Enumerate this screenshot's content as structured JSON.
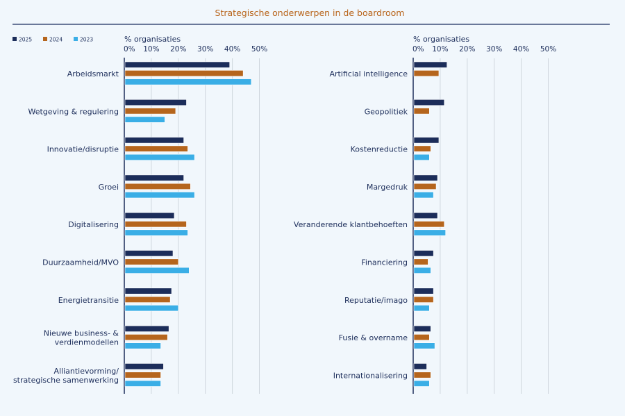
{
  "title": "Strategische onderwerpen in de boardroom",
  "colors": {
    "2025": "#1c2d5a",
    "2024": "#b5651d",
    "2023": "#3aaee6",
    "title": "#b8641a",
    "grid": "#cfd6dd"
  },
  "legend": [
    {
      "name": "2025",
      "color": "#1c2d5a"
    },
    {
      "name": "2024",
      "color": "#b5651d"
    },
    {
      "name": "2023",
      "color": "#3aaee6"
    }
  ],
  "chart_data": [
    {
      "type": "bar",
      "orientation": "horizontal",
      "xlabel": "% organisaties",
      "xlim": [
        0,
        50
      ],
      "xticks": [
        "0%",
        "10%",
        "20%",
        "30%",
        "40%",
        "50%"
      ],
      "grid": true,
      "legend_position": "top-left",
      "categories": [
        [
          "Arbeidsmarkt"
        ],
        [
          "Wetgeving & regulering"
        ],
        [
          "Innovatie/disruptie"
        ],
        [
          "Groei"
        ],
        [
          "Digitalisering"
        ],
        [
          "Duurzaamheid/MVO"
        ],
        [
          "Energietransitie"
        ],
        [
          "Nieuwe business- &",
          "verdienmodellen"
        ],
        [
          "Alliantievorming/",
          "strategische samenwerking"
        ]
      ],
      "series": [
        {
          "name": "2025",
          "values": [
            39,
            23,
            22,
            22,
            18.5,
            18,
            17.5,
            16.5,
            14.5
          ]
        },
        {
          "name": "2024",
          "values": [
            44,
            19,
            23.5,
            24.5,
            23,
            20,
            17,
            16,
            13.5
          ]
        },
        {
          "name": "2023",
          "values": [
            47,
            15,
            26,
            26,
            23.5,
            24,
            20,
            13.5,
            13.5
          ]
        }
      ]
    },
    {
      "type": "bar",
      "orientation": "horizontal",
      "xlabel": "% organisaties",
      "xlim": [
        0,
        50
      ],
      "xticks": [
        "0%",
        "10%",
        "20%",
        "30%",
        "40%",
        "50%"
      ],
      "grid": true,
      "categories": [
        [
          "Artificial intelligence"
        ],
        [
          "Geopolitiek"
        ],
        [
          "Kostenreductie"
        ],
        [
          "Margedruk"
        ],
        [
          "Veranderende klantbehoeften"
        ],
        [
          "Financiering"
        ],
        [
          "Reputatie/imago"
        ],
        [
          "Fusie & overname"
        ],
        [
          "Internationalisering"
        ]
      ],
      "series": [
        {
          "name": "2025",
          "values": [
            12.5,
            11.5,
            9.5,
            9,
            9,
            7.5,
            7.5,
            6.5,
            5
          ]
        },
        {
          "name": "2024",
          "values": [
            9.5,
            6,
            6.5,
            8.5,
            11.5,
            5.5,
            7.5,
            6,
            6.5
          ]
        },
        {
          "name": "2023",
          "values": [
            null,
            null,
            6,
            7.5,
            12,
            6.5,
            6,
            8,
            6
          ]
        }
      ]
    }
  ]
}
